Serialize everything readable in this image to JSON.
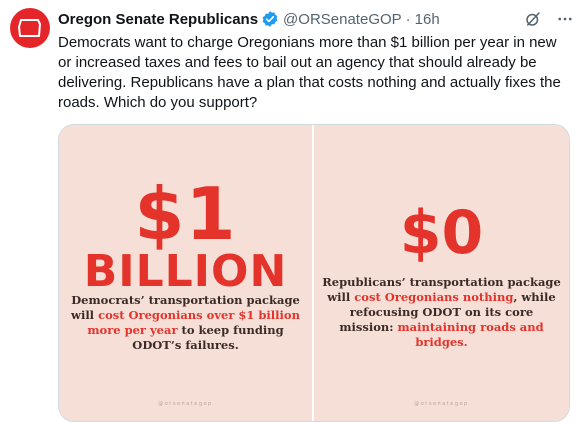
{
  "author": {
    "display_name": "Oregon Senate Republicans",
    "handle": "@ORSenateGOP",
    "separator": "·",
    "time": "16h",
    "avatar_icon": "oregon-state-outline-icon",
    "verified_icon": "verified-badge-icon"
  },
  "tweet": {
    "text": "Democrats want to charge Oregonians more than $1 billion per year in new or increased taxes and fees to bail out an agency that should already be delivering. Republicans have a plan that costs nothing and actually fixes the roads. Which do you support?"
  },
  "media": {
    "left": {
      "headline": "$1",
      "subheadline": "BILLION",
      "caption_part1": "Democrats’ transportation package will ",
      "caption_highlight": "cost Oregonians over $1 billion more per year",
      "caption_part2": " to keep funding ODOT’s failures.",
      "watermark": "@orsenategop"
    },
    "right": {
      "headline": "$0",
      "caption_part1": "Republicans’ transportation package will ",
      "caption_highlight1": "cost Oregonians nothing",
      "caption_part2": ", while refocusing ODOT on its core mission: ",
      "caption_highlight2": "maintaining roads and bridges.",
      "watermark": "@orsenategop"
    }
  },
  "colors": {
    "accent_red": "#e3332b",
    "verified_blue": "#1d9bf0",
    "panel_bg": "#f6dfd7"
  }
}
